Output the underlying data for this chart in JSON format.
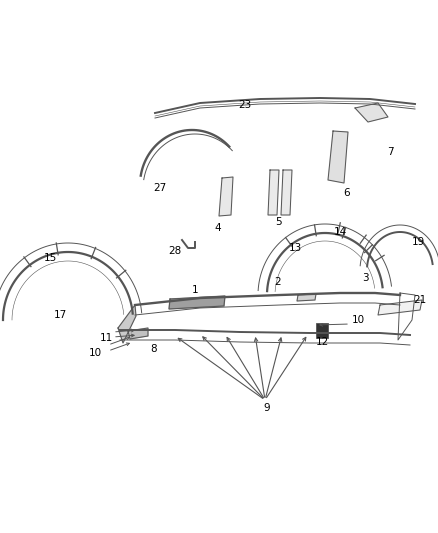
{
  "bg_color": "#ffffff",
  "line_color": "#555555",
  "label_color": "#000000",
  "figsize": [
    4.38,
    5.33
  ],
  "dpi": 100,
  "lw_main": 1.4,
  "lw_thin": 0.7,
  "lw_outer": 0.6,
  "font_size": 7.5
}
